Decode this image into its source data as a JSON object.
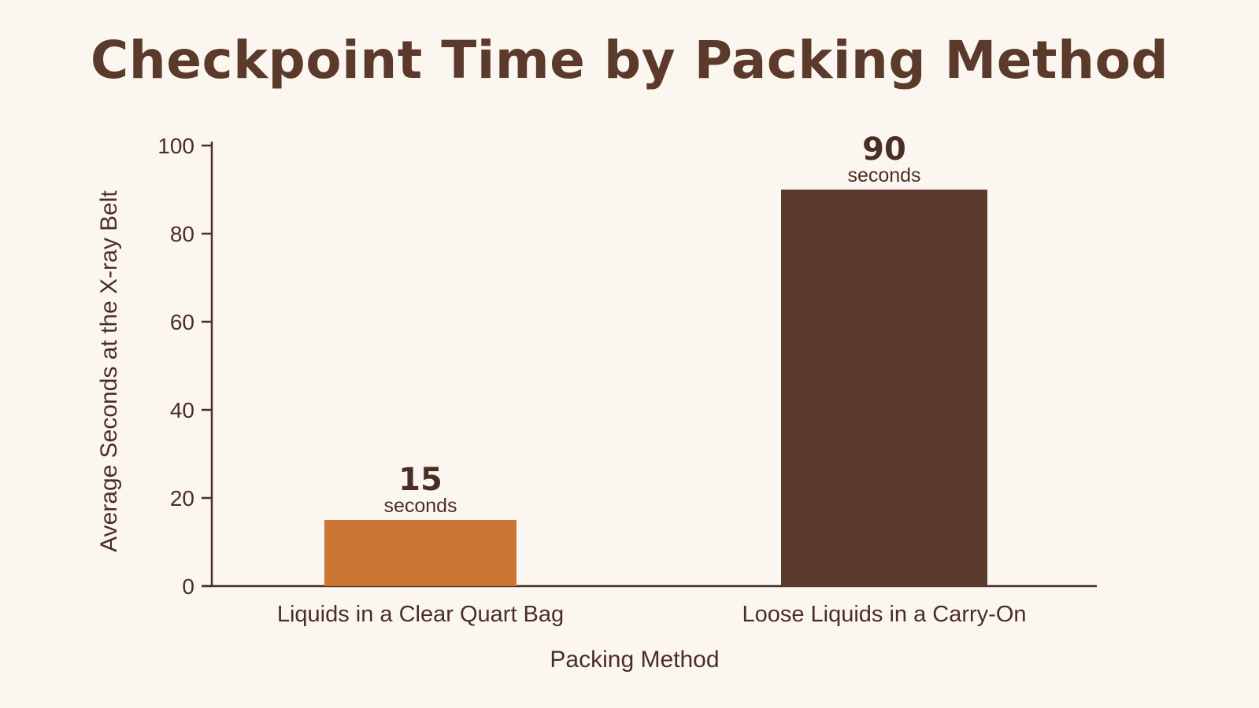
{
  "chart_data": {
    "type": "bar",
    "title": "Checkpoint Time by Packing Method",
    "xlabel": "Packing Method",
    "ylabel": "Average Seconds at the X-ray Belt",
    "categories": [
      "Liquids in a Clear Quart Bag",
      "Loose Liquids in a Carry-On"
    ],
    "values": [
      15,
      90
    ],
    "data_labels": [
      "15",
      "90"
    ],
    "value_unit": "seconds",
    "ylim": [
      0,
      100
    ],
    "yticks": [
      0,
      20,
      40,
      60,
      80,
      100
    ],
    "grid": false,
    "legend": "none",
    "colors": [
      "#c97635",
      "#5b3a2c"
    ]
  }
}
